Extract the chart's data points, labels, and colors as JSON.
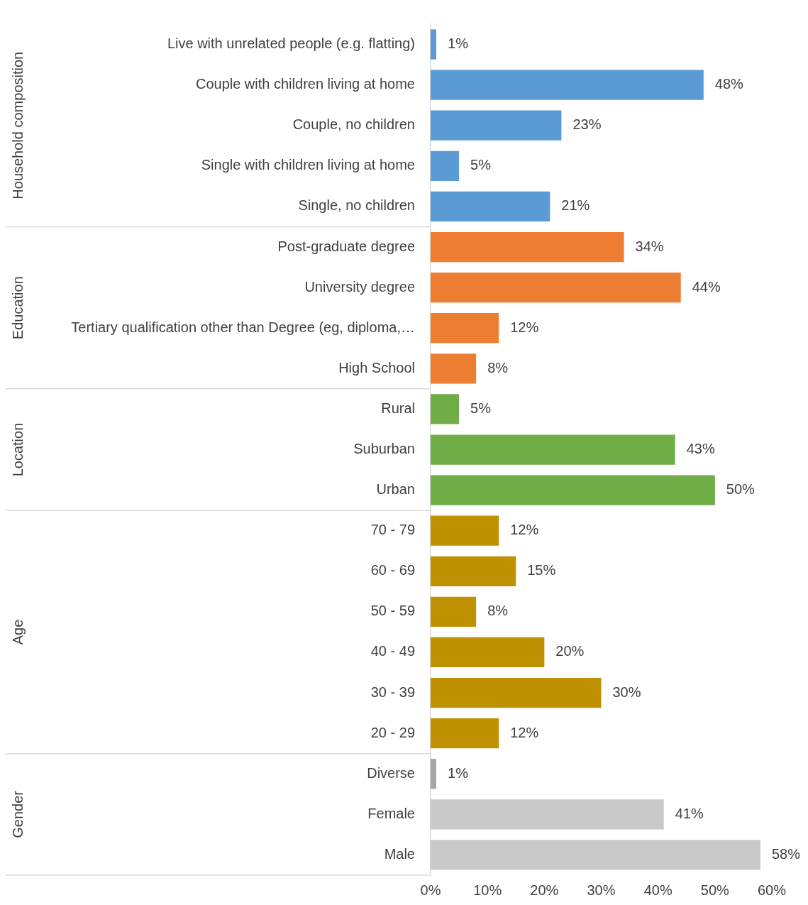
{
  "chart_data": {
    "type": "bar",
    "orientation": "horizontal",
    "categories": [
      "Live with unrelated people (e.g. flatting)",
      "Couple with children living at home",
      "Couple, no children",
      "Single with children living at home",
      "Single, no children",
      "Post-graduate degree",
      "University degree",
      "Tertiary qualification other than Degree (eg, diploma,…",
      "High School",
      "Rural",
      "Suburban",
      "Urban",
      "70 - 79",
      "60 - 69",
      "50 - 59",
      "40 - 49",
      "30 - 39",
      "20 - 29",
      "Diverse",
      "Female",
      "Male"
    ],
    "series": [
      {
        "color": "#5b9bd5",
        "values": [
          1,
          48,
          23,
          5,
          21,
          null,
          null,
          null,
          null,
          null,
          null,
          null,
          null,
          null,
          null,
          null,
          null,
          null,
          null,
          null,
          null
        ],
        "value_labels": [
          "1%",
          "48%",
          "23%",
          "5%",
          "21%",
          null,
          null,
          null,
          null,
          null,
          null,
          null,
          null,
          null,
          null,
          null,
          null,
          null,
          null,
          null,
          null
        ]
      },
      {
        "color": "#ed7d31",
        "values": [
          null,
          null,
          null,
          null,
          null,
          34,
          44,
          12,
          8,
          null,
          null,
          null,
          null,
          null,
          null,
          null,
          null,
          null,
          null,
          null,
          null
        ],
        "value_labels": [
          null,
          null,
          null,
          null,
          null,
          "34%",
          "44%",
          "12%",
          "8%",
          null,
          null,
          null,
          null,
          null,
          null,
          null,
          null,
          null,
          null,
          null,
          null
        ]
      },
      {
        "color": "#70ad47",
        "values": [
          null,
          null,
          null,
          null,
          null,
          null,
          null,
          null,
          null,
          5,
          43,
          50,
          null,
          null,
          null,
          null,
          null,
          null,
          null,
          null,
          null
        ],
        "value_labels": [
          null,
          null,
          null,
          null,
          null,
          null,
          null,
          null,
          null,
          "5%",
          "43%",
          "50%",
          null,
          null,
          null,
          null,
          null,
          null,
          null,
          null,
          null
        ]
      },
      {
        "color": "#bf9000",
        "values": [
          null,
          null,
          null,
          null,
          null,
          null,
          null,
          null,
          null,
          null,
          null,
          null,
          12,
          15,
          8,
          20,
          30,
          12,
          null,
          null,
          null
        ],
        "value_labels": [
          null,
          null,
          null,
          null,
          null,
          null,
          null,
          null,
          null,
          null,
          null,
          null,
          "12%",
          "15%",
          "8%",
          "20%",
          "30%",
          "12%",
          null,
          null,
          null
        ]
      },
      {
        "colors": [
          null,
          null,
          null,
          null,
          null,
          null,
          null,
          null,
          null,
          null,
          null,
          null,
          null,
          null,
          null,
          null,
          null,
          null,
          "#a5a5a5",
          "#c9c9c9",
          "#c9c9c9"
        ],
        "values": [
          null,
          null,
          null,
          null,
          null,
          null,
          null,
          null,
          null,
          null,
          null,
          null,
          null,
          null,
          null,
          null,
          null,
          null,
          1,
          41,
          58
        ],
        "value_labels": [
          null,
          null,
          null,
          null,
          null,
          null,
          null,
          null,
          null,
          null,
          null,
          null,
          null,
          null,
          null,
          null,
          null,
          null,
          "1%",
          "41%",
          "58%"
        ]
      }
    ],
    "annotations": [
      "Household composition",
      "Education",
      "Location",
      "Age",
      "Gender"
    ],
    "xlim": [
      0,
      60
    ],
    "xticks": [
      {
        "value": 0,
        "label": "0%"
      },
      {
        "value": 10,
        "label": "10%"
      },
      {
        "value": 20,
        "label": "20%"
      },
      {
        "value": 30,
        "label": "30%"
      },
      {
        "value": 40,
        "label": "40%"
      },
      {
        "value": 50,
        "label": "50%"
      },
      {
        "value": 60,
        "label": "60%"
      }
    ],
    "grid": false,
    "legend": false
  }
}
